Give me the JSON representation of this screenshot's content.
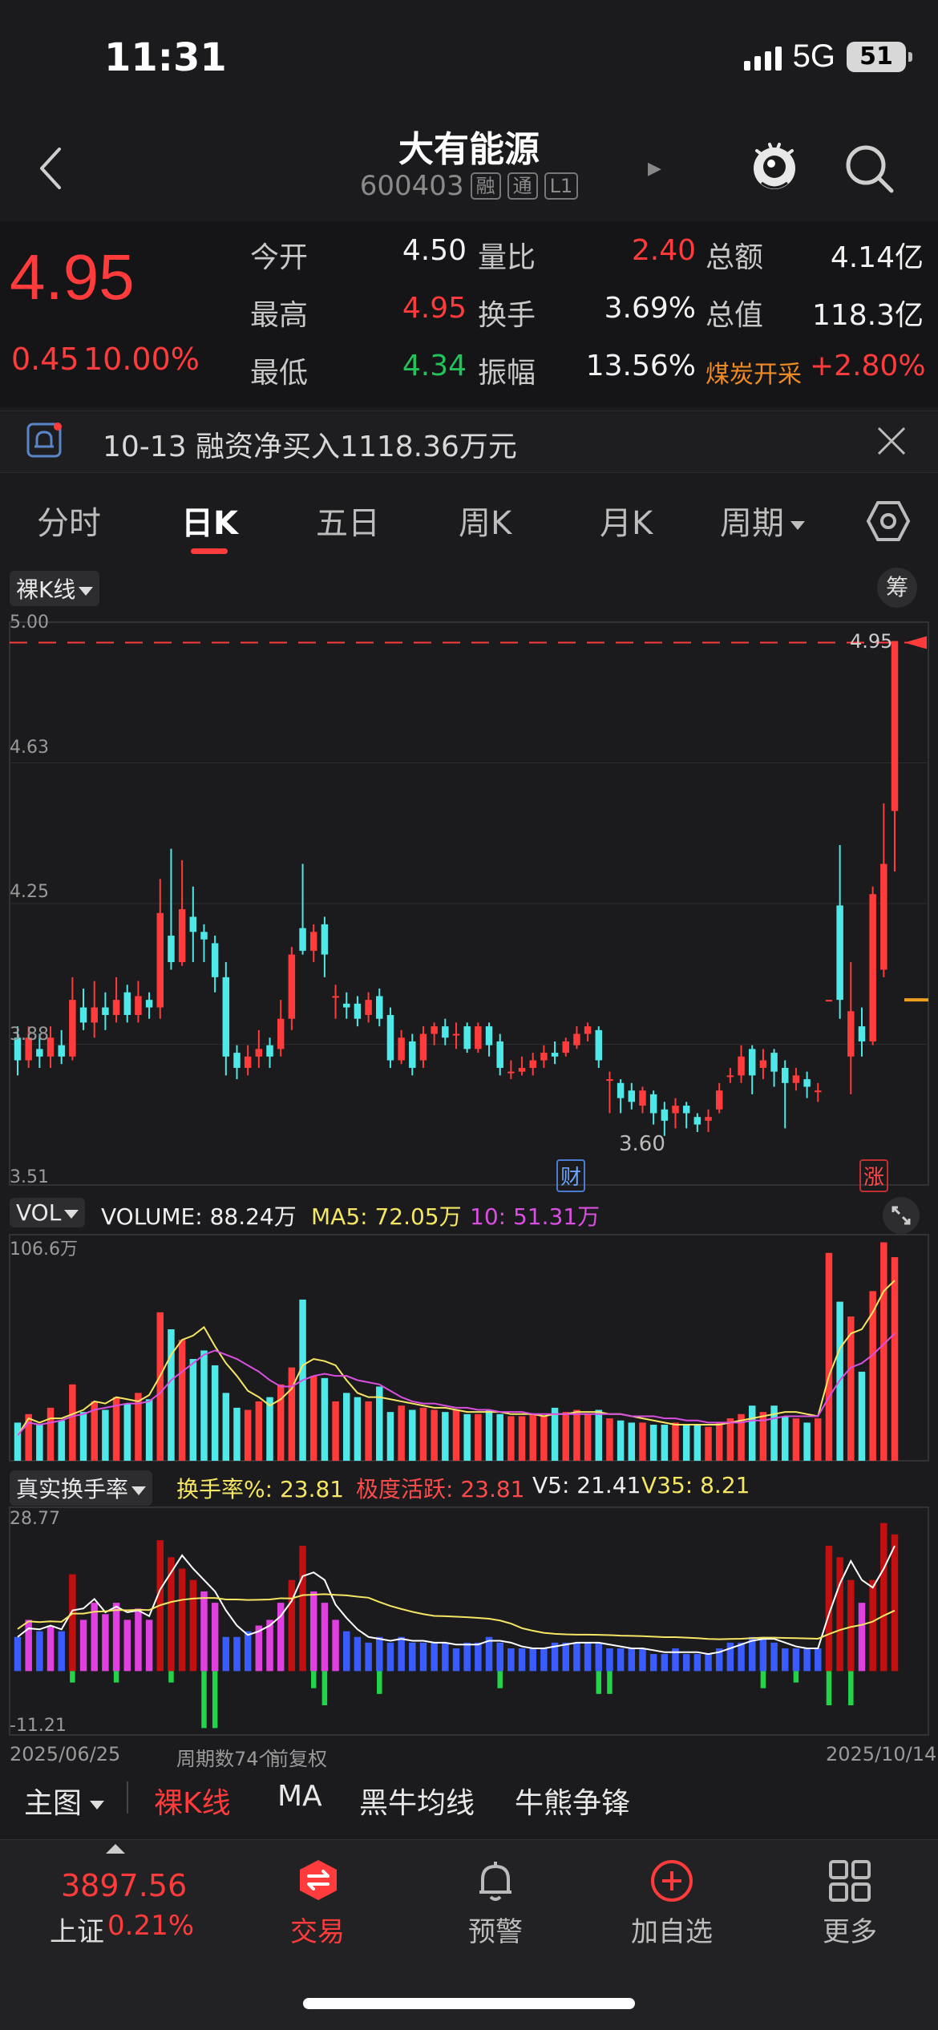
{
  "status_bar": {
    "time": "11:31",
    "network": "5G",
    "battery": "51"
  },
  "header": {
    "stock_name": "大有能源",
    "stock_code": "600403",
    "tags": [
      "融",
      "通",
      "L1"
    ]
  },
  "quote": {
    "price": "4.95",
    "change_abs": "0.45",
    "change_pct": "10.00%",
    "fields": [
      {
        "label": "今开",
        "value": "4.50",
        "color": "white"
      },
      {
        "label": "量比",
        "value": "2.40",
        "color": "red"
      },
      {
        "label": "总额",
        "value": "4.14亿",
        "color": "white"
      },
      {
        "label": "最高",
        "value": "4.95",
        "color": "red"
      },
      {
        "label": "换手",
        "value": "3.69%",
        "color": "white"
      },
      {
        "label": "总值",
        "value": "118.3亿",
        "color": "white"
      },
      {
        "label": "最低",
        "value": "4.34",
        "color": "green"
      },
      {
        "label": "振幅",
        "value": "13.56%",
        "color": "white"
      },
      {
        "label": "煤炭开采",
        "value": "+2.80%",
        "color": "red"
      }
    ]
  },
  "notice": {
    "text": "10-13 融资净买入1118.36万元"
  },
  "tabs": [
    "分时",
    "日K",
    "五日",
    "周K",
    "月K",
    "周期"
  ],
  "active_tab": "日K",
  "chart": {
    "kline_selector": "裸K线",
    "chip_button": "筹",
    "price_ticks": [
      "5.00",
      "4.63",
      "4.25",
      "3.88",
      "3.51"
    ],
    "last_price_label": "4.95",
    "low_label": "3.60",
    "marker_cai": "财",
    "marker_zhang": "涨",
    "vol_selector": "VOL",
    "vol_values": {
      "volume": "VOLUME: 88.24万",
      "ma5": "MA5: 72.05万",
      "ma10": "10: 51.31万"
    },
    "vol_max": "106.6万",
    "turnover_selector": "真实换手率",
    "turnover_values": {
      "rate": "换手率%: 23.81",
      "active": "极度活跃: 23.81",
      "v5": "V5: 21.41",
      "v35": "V35: 8.21"
    },
    "turnover_max": "28.77",
    "turnover_min": "-11.21",
    "date_start": "2025/06/25",
    "period_count": "周期数74个",
    "adjust": "前复权",
    "date_end": "2025/10/14"
  },
  "bottom_tabs": {
    "main": "主图",
    "items": [
      "裸K线",
      "MA",
      "黑牛均线",
      "牛熊争锋"
    ]
  },
  "bottom_nav": {
    "index_value": "3897.56",
    "index_name": "上证",
    "index_pct": "0.21%",
    "items": [
      "交易",
      "预警",
      "加自选",
      "更多"
    ]
  },
  "colors": {
    "up": "#ff3b3b",
    "down": "#4ee8e8",
    "ma5": "#f5e663",
    "ma10": "#d94fe0",
    "bg": "#1b1b1d"
  },
  "chart_data": {
    "type": "candlestick",
    "price_range": [
      3.51,
      5.0
    ],
    "candles": [
      [
        3.9,
        3.84,
        3.93,
        3.8
      ],
      [
        3.84,
        3.9,
        3.93,
        3.82
      ],
      [
        3.87,
        3.85,
        3.91,
        3.82
      ],
      [
        3.85,
        3.9,
        3.93,
        3.82
      ],
      [
        3.88,
        3.85,
        3.92,
        3.83
      ],
      [
        3.85,
        4.0,
        4.06,
        3.84
      ],
      [
        3.98,
        3.94,
        4.03,
        3.92
      ],
      [
        3.94,
        3.98,
        4.05,
        3.9
      ],
      [
        3.98,
        3.96,
        4.02,
        3.92
      ],
      [
        3.96,
        4.0,
        4.06,
        3.94
      ],
      [
        4.02,
        3.96,
        4.04,
        3.94
      ],
      [
        3.96,
        4.01,
        4.05,
        3.94
      ],
      [
        4.0,
        3.98,
        4.02,
        3.95
      ],
      [
        3.98,
        4.23,
        4.32,
        3.95
      ],
      [
        4.17,
        4.1,
        4.4,
        4.08
      ],
      [
        4.1,
        4.24,
        4.37,
        4.09
      ],
      [
        4.22,
        4.18,
        4.3,
        4.1
      ],
      [
        4.18,
        4.16,
        4.2,
        4.1
      ],
      [
        4.15,
        4.06,
        4.17,
        4.02
      ],
      [
        4.06,
        3.85,
        4.1,
        3.8
      ],
      [
        3.86,
        3.82,
        3.88,
        3.79
      ],
      [
        3.82,
        3.85,
        3.88,
        3.8
      ],
      [
        3.85,
        3.87,
        3.92,
        3.82
      ],
      [
        3.88,
        3.85,
        3.9,
        3.82
      ],
      [
        3.87,
        3.95,
        4.0,
        3.85
      ],
      [
        3.95,
        4.12,
        4.14,
        3.92
      ],
      [
        4.19,
        4.13,
        4.36,
        4.12
      ],
      [
        4.13,
        4.18,
        4.2,
        4.1
      ],
      [
        4.2,
        4.12,
        4.22,
        4.06
      ],
      [
        4.01,
        4.01,
        4.04,
        3.95
      ],
      [
        3.99,
        3.98,
        4.02,
        3.95
      ],
      [
        3.99,
        3.95,
        4.01,
        3.93
      ],
      [
        3.96,
        4.0,
        4.02,
        3.94
      ],
      [
        4.01,
        3.95,
        4.03,
        3.93
      ],
      [
        3.96,
        3.84,
        3.98,
        3.82
      ],
      [
        3.84,
        3.9,
        3.92,
        3.83
      ],
      [
        3.89,
        3.82,
        3.91,
        3.8
      ],
      [
        3.84,
        3.91,
        3.93,
        3.82
      ],
      [
        3.91,
        3.93,
        3.94,
        3.88
      ],
      [
        3.93,
        3.9,
        3.95,
        3.88
      ],
      [
        3.91,
        3.91,
        3.94,
        3.87
      ],
      [
        3.93,
        3.87,
        3.94,
        3.86
      ],
      [
        3.87,
        3.93,
        3.94,
        3.86
      ],
      [
        3.93,
        3.88,
        3.94,
        3.85
      ],
      [
        3.89,
        3.82,
        3.91,
        3.8
      ],
      [
        3.81,
        3.81,
        3.84,
        3.79
      ],
      [
        3.81,
        3.82,
        3.85,
        3.8
      ],
      [
        3.82,
        3.84,
        3.86,
        3.8
      ],
      [
        3.84,
        3.86,
        3.88,
        3.82
      ],
      [
        3.86,
        3.85,
        3.89,
        3.83
      ],
      [
        3.86,
        3.89,
        3.9,
        3.85
      ],
      [
        3.88,
        3.91,
        3.93,
        3.87
      ],
      [
        3.91,
        3.93,
        3.94,
        3.89
      ],
      [
        3.92,
        3.84,
        3.93,
        3.82
      ],
      [
        3.79,
        3.79,
        3.81,
        3.7
      ],
      [
        3.78,
        3.74,
        3.79,
        3.7
      ],
      [
        3.76,
        3.73,
        3.78,
        3.71
      ],
      [
        3.72,
        3.76,
        3.77,
        3.7
      ],
      [
        3.75,
        3.7,
        3.76,
        3.67
      ],
      [
        3.71,
        3.68,
        3.73,
        3.64
      ],
      [
        3.7,
        3.72,
        3.74,
        3.66
      ],
      [
        3.72,
        3.7,
        3.73,
        3.66
      ],
      [
        3.69,
        3.67,
        3.7,
        3.65
      ],
      [
        3.68,
        3.69,
        3.71,
        3.65
      ],
      [
        3.71,
        3.76,
        3.78,
        3.7
      ],
      [
        3.8,
        3.8,
        3.82,
        3.78
      ],
      [
        3.8,
        3.85,
        3.88,
        3.78
      ],
      [
        3.87,
        3.8,
        3.88,
        3.75
      ],
      [
        3.82,
        3.84,
        3.87,
        3.79
      ],
      [
        3.86,
        3.81,
        3.87,
        3.77
      ],
      [
        3.82,
        3.78,
        3.84,
        3.66
      ],
      [
        3.78,
        3.8,
        3.82,
        3.76
      ],
      [
        3.79,
        3.77,
        3.81,
        3.74
      ],
      [
        3.76,
        3.76,
        3.78,
        3.73
      ]
    ],
    "tail_candles": [
      [
        4.0,
        4.0,
        4.0,
        4.0
      ],
      [
        4.25,
        4.0,
        4.41,
        3.95
      ],
      [
        3.85,
        3.97,
        4.1,
        3.75
      ],
      [
        3.93,
        3.89,
        3.98,
        3.85
      ],
      [
        3.89,
        4.28,
        4.3,
        3.88
      ],
      [
        4.08,
        4.36,
        4.52,
        4.06
      ],
      [
        4.5,
        4.95,
        4.95,
        4.34
      ]
    ],
    "volume": [
      18,
      22,
      17,
      25,
      19,
      36,
      23,
      28,
      24,
      30,
      27,
      32,
      29,
      70,
      62,
      57,
      48,
      52,
      45,
      32,
      25,
      24,
      28,
      30,
      36,
      44,
      76,
      40,
      39,
      28,
      32,
      30,
      28,
      35,
      23,
      26,
      24,
      25,
      24,
      23,
      24,
      22,
      22,
      24,
      22,
      21,
      21,
      22,
      21,
      25,
      23,
      24,
      22,
      24,
      20,
      19,
      18,
      18,
      17,
      17,
      18,
      17,
      17,
      16,
      18,
      20,
      22,
      26,
      23,
      26,
      21,
      20,
      18,
      20,
      98,
      75,
      68,
      42,
      80,
      103,
      96
    ],
    "vol_ma5": [
      12,
      20,
      18,
      20,
      20,
      22,
      24,
      28,
      27,
      30,
      29,
      28,
      31,
      40,
      50,
      57,
      59,
      63,
      54,
      46,
      40,
      33,
      30,
      26,
      29,
      34,
      45,
      48,
      47,
      45,
      38,
      32,
      30,
      30,
      29,
      28,
      27,
      26,
      25,
      25,
      24,
      23,
      23,
      23,
      23,
      22,
      22,
      22,
      21,
      22,
      22,
      23,
      23,
      23,
      22,
      22,
      21,
      20,
      19,
      18,
      17,
      17,
      17,
      17,
      17,
      18,
      19,
      20,
      21,
      22,
      23,
      23,
      22,
      21,
      40,
      53,
      60,
      62,
      70,
      80,
      85
    ],
    "vol_ma10": [
      12,
      18,
      17,
      18,
      19,
      21,
      22,
      24,
      25,
      26,
      27,
      27,
      28,
      32,
      38,
      42,
      46,
      50,
      52,
      50,
      48,
      45,
      42,
      38,
      35,
      35,
      38,
      40,
      41,
      40,
      40,
      38,
      37,
      36,
      33,
      30,
      28,
      27,
      27,
      26,
      25,
      25,
      24,
      24,
      23,
      23,
      23,
      22,
      22,
      22,
      22,
      22,
      22,
      22,
      22,
      22,
      21,
      21,
      21,
      20,
      20,
      19,
      19,
      18,
      18,
      18,
      18,
      19,
      19,
      20,
      21,
      21,
      21,
      21,
      30,
      38,
      44,
      46,
      50,
      55,
      60
    ],
    "turnover_up": [
      6,
      9,
      7,
      8,
      7,
      17,
      9,
      12,
      10,
      12,
      9,
      11,
      9,
      23,
      20,
      18,
      16,
      14,
      12,
      6,
      6,
      7,
      8,
      9,
      12,
      16,
      22,
      14,
      12,
      9,
      7,
      6,
      5,
      6,
      5,
      6,
      5,
      5,
      5,
      5,
      4,
      5,
      5,
      6,
      5,
      4,
      4,
      4,
      4,
      5,
      5,
      5,
      5,
      5,
      4,
      4,
      4,
      4,
      3,
      3,
      4,
      3,
      3,
      3,
      4,
      5,
      5,
      6,
      6,
      5,
      4,
      4,
      4,
      4,
      22,
      20,
      16,
      12,
      16,
      26,
      24
    ],
    "turnover_down": [
      0,
      0,
      0,
      0,
      0,
      2,
      0,
      0,
      0,
      2,
      0,
      0,
      0,
      0,
      2,
      0,
      0,
      10,
      10,
      0,
      0,
      0,
      0,
      0,
      0,
      0,
      0,
      3,
      6,
      0,
      0,
      0,
      0,
      4,
      0,
      0,
      0,
      0,
      0,
      0,
      0,
      0,
      0,
      0,
      3,
      0,
      0,
      0,
      0,
      0,
      0,
      0,
      0,
      4,
      4,
      0,
      0,
      0,
      0,
      0,
      0,
      0,
      0,
      0,
      0,
      0,
      0,
      0,
      3,
      0,
      0,
      2,
      0,
      0,
      6,
      0,
      6,
      0,
      0,
      0,
      0
    ]
  }
}
